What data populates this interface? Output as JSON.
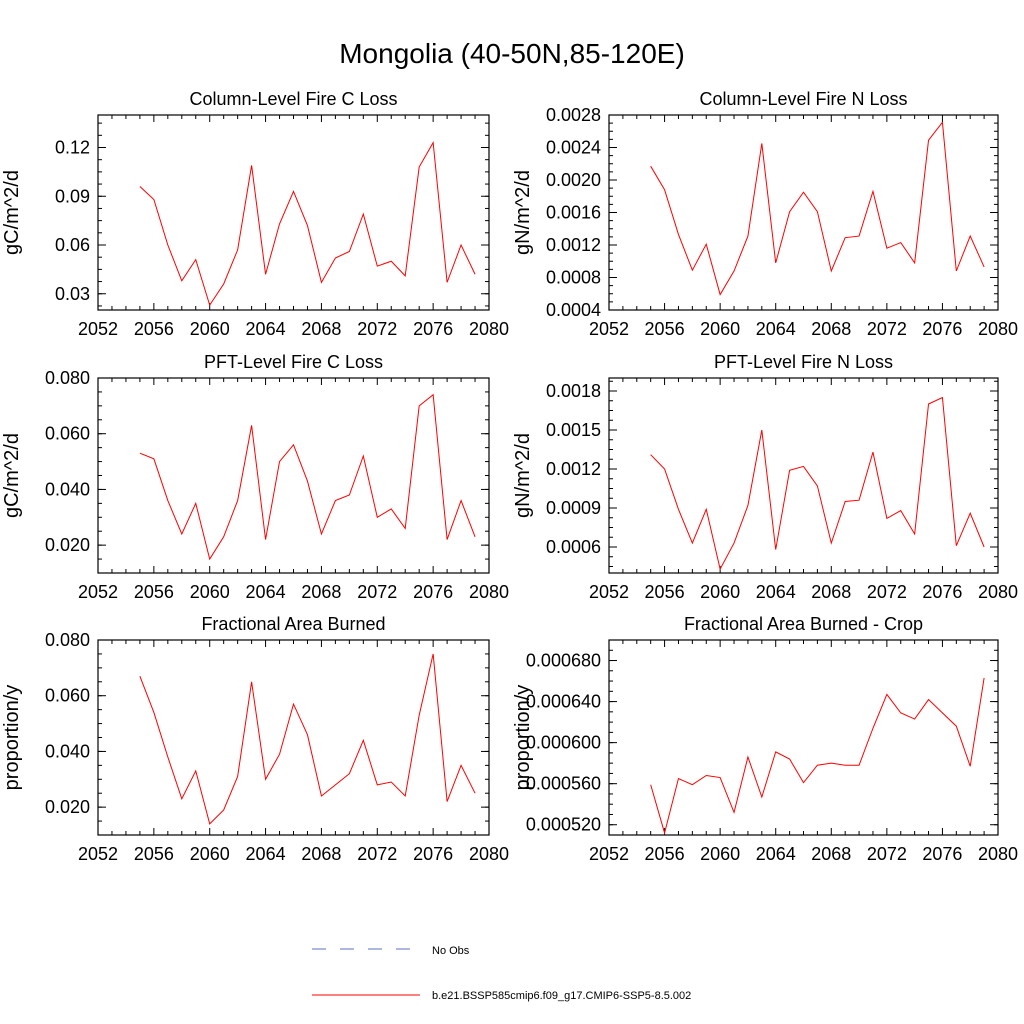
{
  "figure": {
    "title": "Mongolia (40-50N,85-120E)",
    "legend": [
      {
        "label": "No Obs",
        "color": "#5b6fc0",
        "style": "dashed"
      },
      {
        "label": "b.e21.BSSP585cmip6.f09_g17.CMIP6-SSP5-8.5.002",
        "color": "#ff0000",
        "style": "solid"
      }
    ]
  },
  "chart_data": [
    {
      "type": "line",
      "title": "Column-Level Fire C Loss",
      "ylabel": "gC/m^2/d",
      "xlim": [
        2052,
        2080
      ],
      "ylim": [
        0.02,
        0.14
      ],
      "xticks": [
        "2052",
        "2056",
        "2060",
        "2064",
        "2068",
        "2072",
        "2076",
        "2080"
      ],
      "yticks": [
        "0.03",
        "0.06",
        "0.09",
        "0.12"
      ],
      "x": [
        2055,
        2056,
        2057,
        2058,
        2059,
        2060,
        2061,
        2062,
        2063,
        2064,
        2065,
        2066,
        2067,
        2068,
        2069,
        2070,
        2071,
        2072,
        2073,
        2074,
        2075,
        2076,
        2077,
        2078,
        2079
      ],
      "series": [
        {
          "color": "#ff0000",
          "values": [
            0.096,
            0.088,
            0.06,
            0.038,
            0.051,
            0.023,
            0.036,
            0.057,
            0.109,
            0.042,
            0.073,
            0.093,
            0.072,
            0.037,
            0.052,
            0.056,
            0.079,
            0.047,
            0.05,
            0.041,
            0.108,
            0.123,
            0.037,
            0.06,
            0.042
          ]
        }
      ]
    },
    {
      "type": "line",
      "title": "Column-Level Fire N Loss",
      "ylabel": "gN/m^2/d",
      "xlim": [
        2052,
        2080
      ],
      "ylim": [
        0.0004,
        0.0028
      ],
      "xticks": [
        "2052",
        "2056",
        "2060",
        "2064",
        "2068",
        "2072",
        "2076",
        "2080"
      ],
      "yticks": [
        "0.0004",
        "0.0008",
        "0.0012",
        "0.0016",
        "0.0020",
        "0.0024",
        "0.0028"
      ],
      "x": [
        2055,
        2056,
        2057,
        2058,
        2059,
        2060,
        2061,
        2062,
        2063,
        2064,
        2065,
        2066,
        2067,
        2068,
        2069,
        2070,
        2071,
        2072,
        2073,
        2074,
        2075,
        2076,
        2077,
        2078,
        2079
      ],
      "series": [
        {
          "color": "#ff0000",
          "values": [
            0.00217,
            0.00188,
            0.00133,
            0.00089,
            0.00121,
            0.00059,
            0.00088,
            0.00131,
            0.00245,
            0.00098,
            0.00161,
            0.00185,
            0.00161,
            0.00088,
            0.00129,
            0.00131,
            0.00186,
            0.00116,
            0.00123,
            0.00098,
            0.00249,
            0.00271,
            0.00088,
            0.00131,
            0.00093
          ]
        }
      ]
    },
    {
      "type": "line",
      "title": "PFT-Level Fire C Loss",
      "ylabel": "gC/m^2/d",
      "xlim": [
        2052,
        2080
      ],
      "ylim": [
        0.01,
        0.08
      ],
      "xticks": [
        "2052",
        "2056",
        "2060",
        "2064",
        "2068",
        "2072",
        "2076",
        "2080"
      ],
      "yticks": [
        "0.020",
        "0.040",
        "0.060",
        "0.080"
      ],
      "x": [
        2055,
        2056,
        2057,
        2058,
        2059,
        2060,
        2061,
        2062,
        2063,
        2064,
        2065,
        2066,
        2067,
        2068,
        2069,
        2070,
        2071,
        2072,
        2073,
        2074,
        2075,
        2076,
        2077,
        2078,
        2079
      ],
      "series": [
        {
          "color": "#ff0000",
          "values": [
            0.053,
            0.051,
            0.036,
            0.024,
            0.035,
            0.015,
            0.023,
            0.036,
            0.063,
            0.022,
            0.05,
            0.056,
            0.043,
            0.024,
            0.036,
            0.038,
            0.052,
            0.03,
            0.033,
            0.026,
            0.07,
            0.074,
            0.022,
            0.036,
            0.023
          ]
        }
      ]
    },
    {
      "type": "line",
      "title": "PFT-Level Fire N Loss",
      "ylabel": "gN/m^2/d",
      "xlim": [
        2052,
        2080
      ],
      "ylim": [
        0.0004,
        0.0019
      ],
      "xticks": [
        "2052",
        "2056",
        "2060",
        "2064",
        "2068",
        "2072",
        "2076",
        "2080"
      ],
      "yticks": [
        "0.0006",
        "0.0009",
        "0.0012",
        "0.0015",
        "0.0018"
      ],
      "x": [
        2055,
        2056,
        2057,
        2058,
        2059,
        2060,
        2061,
        2062,
        2063,
        2064,
        2065,
        2066,
        2067,
        2068,
        2069,
        2070,
        2071,
        2072,
        2073,
        2074,
        2075,
        2076,
        2077,
        2078,
        2079
      ],
      "series": [
        {
          "color": "#ff0000",
          "values": [
            0.00131,
            0.0012,
            0.00089,
            0.00063,
            0.00089,
            0.00043,
            0.00063,
            0.00092,
            0.0015,
            0.00058,
            0.00119,
            0.00122,
            0.00107,
            0.00063,
            0.00095,
            0.00096,
            0.00133,
            0.00082,
            0.00088,
            0.0007,
            0.0017,
            0.00175,
            0.00061,
            0.00086,
            0.0006
          ]
        }
      ]
    },
    {
      "type": "line",
      "title": "Fractional Area Burned",
      "ylabel": "proportion/y",
      "xlim": [
        2052,
        2080
      ],
      "ylim": [
        0.01,
        0.08
      ],
      "xticks": [
        "2052",
        "2056",
        "2060",
        "2064",
        "2068",
        "2072",
        "2076",
        "2080"
      ],
      "yticks": [
        "0.020",
        "0.040",
        "0.060",
        "0.080"
      ],
      "x": [
        2055,
        2056,
        2057,
        2058,
        2059,
        2060,
        2061,
        2062,
        2063,
        2064,
        2065,
        2066,
        2067,
        2068,
        2069,
        2070,
        2071,
        2072,
        2073,
        2074,
        2075,
        2076,
        2077,
        2078,
        2079
      ],
      "series": [
        {
          "color": "#ff0000",
          "values": [
            0.067,
            0.054,
            0.038,
            0.023,
            0.033,
            0.014,
            0.019,
            0.031,
            0.065,
            0.03,
            0.039,
            0.057,
            0.046,
            0.024,
            0.028,
            0.032,
            0.044,
            0.028,
            0.029,
            0.024,
            0.053,
            0.075,
            0.022,
            0.035,
            0.025
          ]
        }
      ]
    },
    {
      "type": "line",
      "title": "Fractional Area Burned - Crop",
      "ylabel": "proportion/y",
      "xlim": [
        2052,
        2080
      ],
      "ylim": [
        0.00051,
        0.0007
      ],
      "xticks": [
        "2052",
        "2056",
        "2060",
        "2064",
        "2068",
        "2072",
        "2076",
        "2080"
      ],
      "yticks": [
        "0.000520",
        "0.000560",
        "0.000600",
        "0.000640",
        "0.000680"
      ],
      "x": [
        2055,
        2056,
        2057,
        2058,
        2059,
        2060,
        2061,
        2062,
        2063,
        2064,
        2065,
        2066,
        2067,
        2068,
        2069,
        2070,
        2071,
        2072,
        2073,
        2074,
        2075,
        2076,
        2077,
        2078,
        2079
      ],
      "series": [
        {
          "color": "#ff0000",
          "values": [
            0.000559,
            0.000512,
            0.000565,
            0.000559,
            0.000568,
            0.000566,
            0.000532,
            0.000586,
            0.000547,
            0.000591,
            0.000584,
            0.000561,
            0.000578,
            0.00058,
            0.000578,
            0.000578,
            0.000614,
            0.000647,
            0.000629,
            0.000623,
            0.000642,
            0.000629,
            0.000616,
            0.000577,
            0.000663
          ]
        }
      ]
    }
  ]
}
